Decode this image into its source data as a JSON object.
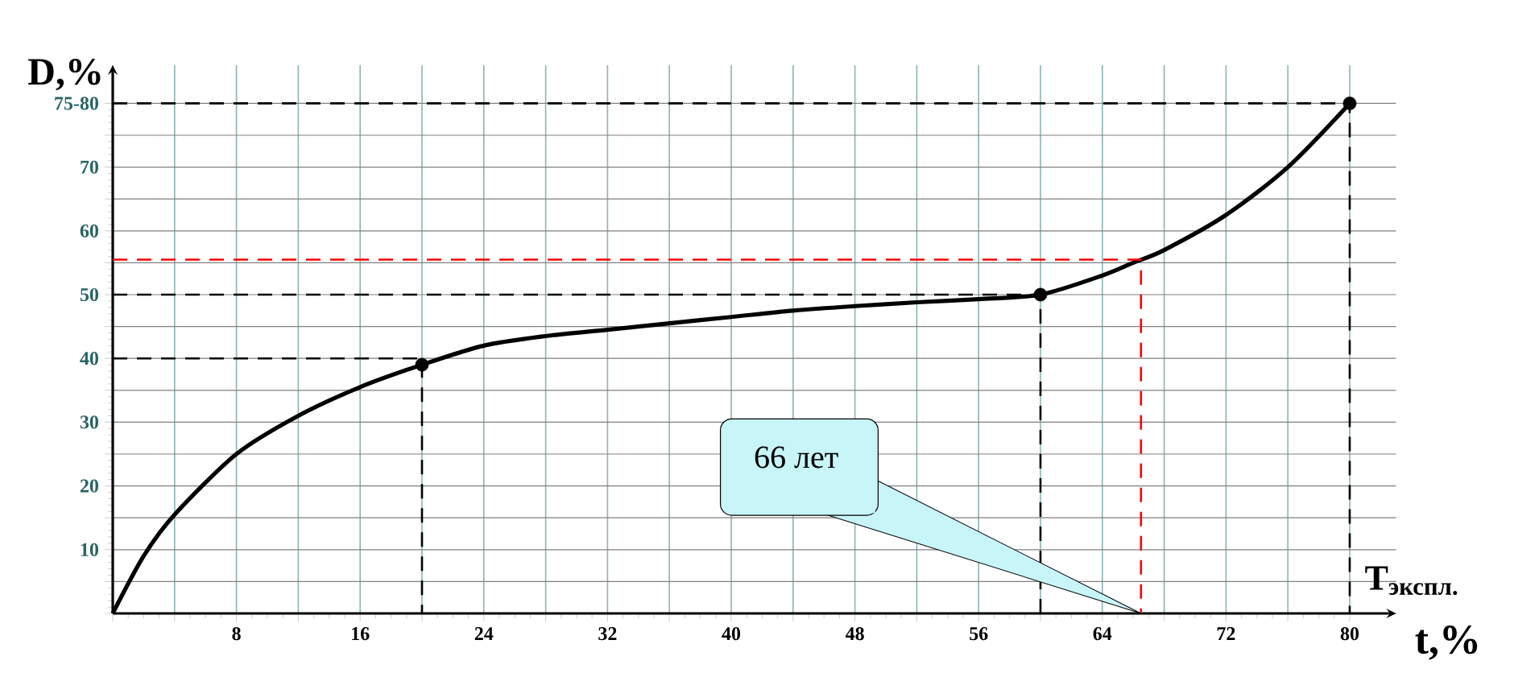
{
  "chart_data": {
    "type": "line",
    "ylabel": "D,%",
    "xlabel": "t,%",
    "xlim": [
      0,
      83
    ],
    "ylim": [
      0,
      86
    ],
    "xticks": [
      {
        "value": 0,
        "label": null
      },
      {
        "value": 4,
        "label": null
      },
      8,
      {
        "value": 12,
        "label": null
      },
      16,
      {
        "value": 20,
        "label": null
      },
      24,
      {
        "value": 28,
        "label": null
      },
      32,
      {
        "value": 36,
        "label": null
      },
      40,
      {
        "value": 44,
        "label": null
      },
      48,
      {
        "value": 52,
        "label": null
      },
      56,
      {
        "value": 60,
        "label": null
      },
      64,
      {
        "value": 68,
        "label": null
      },
      72,
      {
        "value": 76,
        "label": null
      },
      80
    ],
    "yticks": [
      {
        "value": 0,
        "label": null
      },
      {
        "value": 5,
        "label": null
      },
      10,
      {
        "value": 15,
        "label": null
      },
      20,
      {
        "value": 25,
        "label": null
      },
      30,
      {
        "value": 35,
        "label": null
      },
      40,
      {
        "value": 45,
        "label": null
      },
      50,
      {
        "value": 55,
        "label": null
      },
      60,
      {
        "value": 65,
        "label": null
      },
      70,
      {
        "value": 75,
        "label": null
      },
      {
        "value": 80,
        "label": "75-80"
      }
    ],
    "grid": true,
    "series": [
      {
        "color": "#000000",
        "marker": "none",
        "x": [
          0,
          2,
          4,
          8,
          12,
          16,
          20,
          24,
          28,
          32,
          36,
          40,
          44,
          48,
          52,
          56,
          60,
          64,
          66,
          68,
          72,
          76,
          80
        ],
        "values": [
          0,
          9,
          15.5,
          25,
          31,
          35.5,
          39,
          42,
          43.5,
          44.5,
          45.5,
          46.5,
          47.5,
          48.2,
          48.8,
          49.3,
          50,
          53,
          55,
          57,
          62.5,
          70,
          80
        ]
      },
      {
        "type": "scatter",
        "color": "#000000",
        "marker": "circle",
        "x": [
          20,
          60,
          80
        ],
        "values": [
          39,
          50,
          80
        ]
      },
      {
        "type": "line",
        "color": "#000000",
        "line_style": "dashed",
        "x": [
          0,
          20,
          20
        ],
        "values": [
          40,
          40,
          0
        ]
      },
      {
        "type": "line",
        "color": "#000000",
        "line_style": "dashed",
        "x": [
          0,
          60,
          60
        ],
        "values": [
          50,
          50,
          0
        ]
      },
      {
        "type": "line",
        "color": "#000000",
        "line_style": "dashed",
        "x": [
          0,
          80,
          80
        ],
        "values": [
          80,
          80,
          0
        ]
      },
      {
        "type": "line",
        "color": "#ff0000",
        "line_style": "dashed",
        "x": [
          0,
          66.5,
          66.5
        ],
        "values": [
          55.5,
          55.5,
          0
        ]
      }
    ],
    "annotations": [
      {
        "text": "66 лет",
        "x": 66.5,
        "y": 0
      },
      "T$_{экспл.}$"
    ]
  }
}
